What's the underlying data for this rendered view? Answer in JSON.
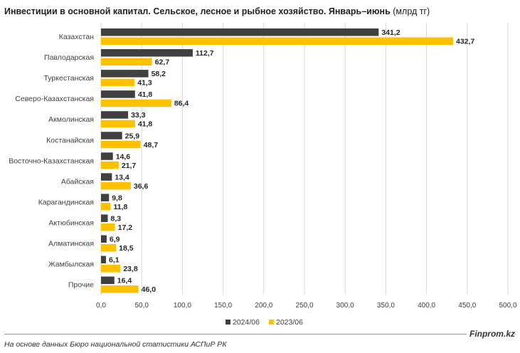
{
  "title_main": "Инвестиции в основной капитал. Сельское, лесное и рыбное хозяйство. Январь–июнь",
  "title_unit": "(млрд тг)",
  "source": "На основе данных Бюро национальной статистики АСПиР РК",
  "brand": "Finprom.kz",
  "colors": {
    "series_2024": "#404040",
    "series_2023": "#ffc000",
    "grid": "#d9d9d9"
  },
  "chart_data": {
    "type": "bar",
    "orientation": "horizontal",
    "categories": [
      "Казахстан",
      "Павлодарская",
      "Туркестанская",
      "Северо-Казахстанская",
      "Акмолинская",
      "Костанайская",
      "Восточно-Казахстанская",
      "Абайская",
      "Карагандинская",
      "Актюбинская",
      "Алматинская",
      "Жамбылская",
      "Прочие"
    ],
    "series": [
      {
        "name": "2024/06",
        "values": [
          341.2,
          112.7,
          58.2,
          41.8,
          33.3,
          25.9,
          14.6,
          13.4,
          9.8,
          8.3,
          6.9,
          6.1,
          16.4
        ],
        "labels": [
          "341,2",
          "112,7",
          "58,2",
          "41,8",
          "33,3",
          "25,9",
          "14,6",
          "13,4",
          "9,8",
          "8,3",
          "6,9",
          "6,1",
          "16,4"
        ]
      },
      {
        "name": "2023/06",
        "values": [
          432.7,
          62.7,
          41.3,
          86.4,
          41.8,
          48.7,
          21.7,
          36.6,
          11.8,
          17.2,
          18.5,
          23.8,
          46.0
        ],
        "labels": [
          "432,7",
          "62,7",
          "41,3",
          "86,4",
          "41,8",
          "48,7",
          "21,7",
          "36,6",
          "11,8",
          "17,2",
          "18,5",
          "23,8",
          "46,0"
        ]
      }
    ],
    "xlim": [
      0,
      500
    ],
    "xticks": [
      "0,0",
      "50,0",
      "100,0",
      "150,0",
      "200,0",
      "250,0",
      "300,0",
      "350,0",
      "400,0",
      "450,0",
      "500,0"
    ],
    "grid": true,
    "legend": "bottom"
  }
}
